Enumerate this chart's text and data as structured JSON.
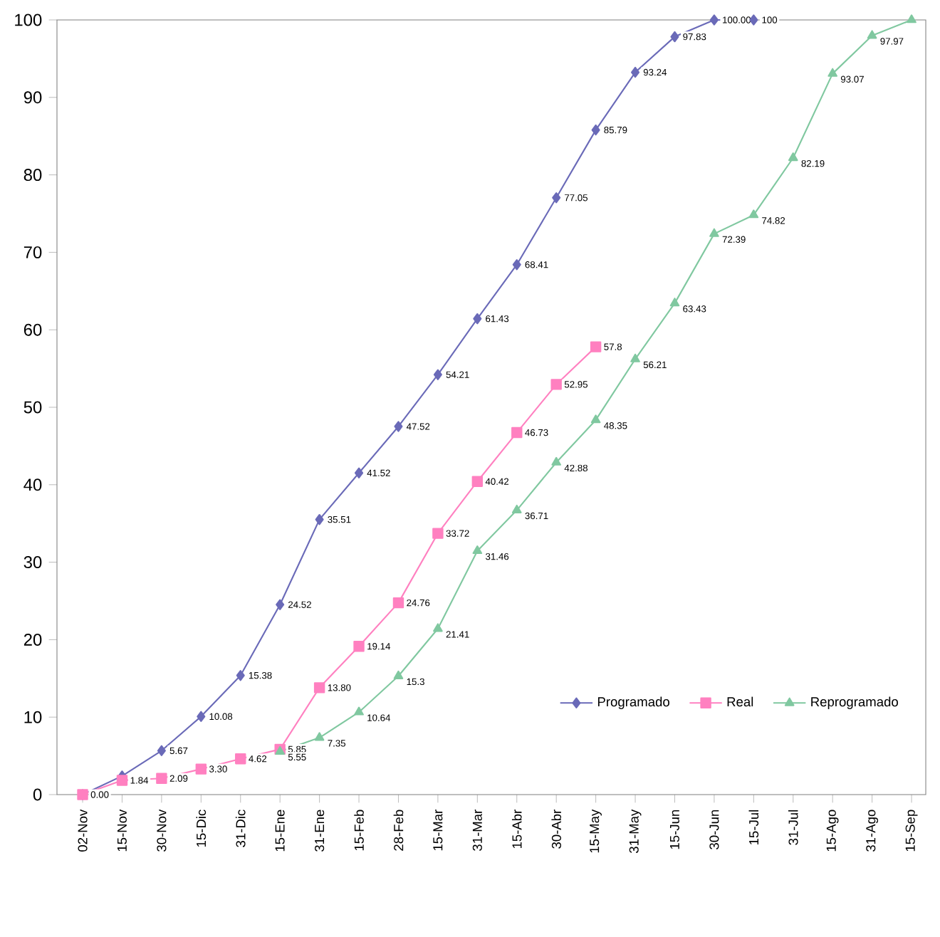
{
  "chart_data": {
    "type": "line",
    "categories": [
      "02-Nov",
      "15-Nov",
      "30-Nov",
      "15-Dic",
      "31-Dic",
      "15-Ene",
      "31-Ene",
      "15-Feb",
      "28-Feb",
      "15-Mar",
      "31-Mar",
      "15-Abr",
      "30-Abr",
      "15-May",
      "31-May",
      "15-Jun",
      "30-Jun",
      "15-Jul",
      "31-Jul",
      "15-Ago",
      "31-Ago",
      "15-Sep"
    ],
    "series": [
      {
        "name": "Programado",
        "color": "#6a6ab8",
        "marker": "diamond",
        "values": [
          0,
          2.4,
          5.67,
          10.08,
          15.38,
          24.52,
          35.51,
          41.52,
          47.52,
          54.21,
          61.43,
          68.41,
          77.05,
          85.79,
          93.24,
          97.83,
          100,
          100,
          null,
          null,
          null,
          null
        ],
        "value_labels": [
          "0.00",
          null,
          "5.67",
          "10.08",
          "15.38",
          "24.52",
          "35.51",
          "41.52",
          "47.52",
          "54.21",
          "61.43",
          "68.41",
          "77.05",
          "85.79",
          "93.24",
          "97.83",
          "100.00",
          "100",
          null,
          null,
          null,
          null
        ]
      },
      {
        "name": "Real",
        "color": "#ff80c0",
        "marker": "square",
        "values": [
          0,
          1.84,
          2.09,
          3.3,
          4.62,
          5.85,
          13.8,
          19.14,
          24.76,
          33.72,
          40.42,
          46.73,
          52.95,
          57.8,
          null,
          null,
          null,
          null,
          null,
          null,
          null,
          null
        ],
        "value_labels": [
          null,
          "1.84",
          "2.09",
          "3.30",
          "4.62",
          "5.85",
          "13.80",
          "19.14",
          "24.76",
          "33.72",
          "40.42",
          "46.73",
          "52.95",
          "57.8",
          null,
          null,
          null,
          null,
          null,
          null,
          null,
          null
        ]
      },
      {
        "name": "Reprogramado",
        "color": "#80c8a0",
        "marker": "triangle",
        "values": [
          null,
          null,
          null,
          null,
          null,
          5.55,
          7.35,
          10.64,
          15.3,
          21.41,
          31.46,
          36.71,
          42.88,
          48.35,
          56.21,
          63.43,
          72.39,
          74.82,
          82.19,
          93.07,
          97.97,
          100
        ],
        "value_labels": [
          null,
          null,
          null,
          null,
          null,
          "5.55",
          "7.35",
          "10.64",
          "15.3",
          "21.41",
          "31.46",
          "36.71",
          "42.88",
          "48.35",
          "56.21",
          "63.43",
          "72.39",
          "74.82",
          "82.19",
          "93.07",
          "97.97",
          null
        ]
      }
    ],
    "ylim": [
      0,
      100
    ],
    "yticks": [
      0,
      10,
      20,
      30,
      40,
      50,
      60,
      70,
      80,
      90,
      100
    ],
    "legend": "bottom right",
    "grid": false
  }
}
